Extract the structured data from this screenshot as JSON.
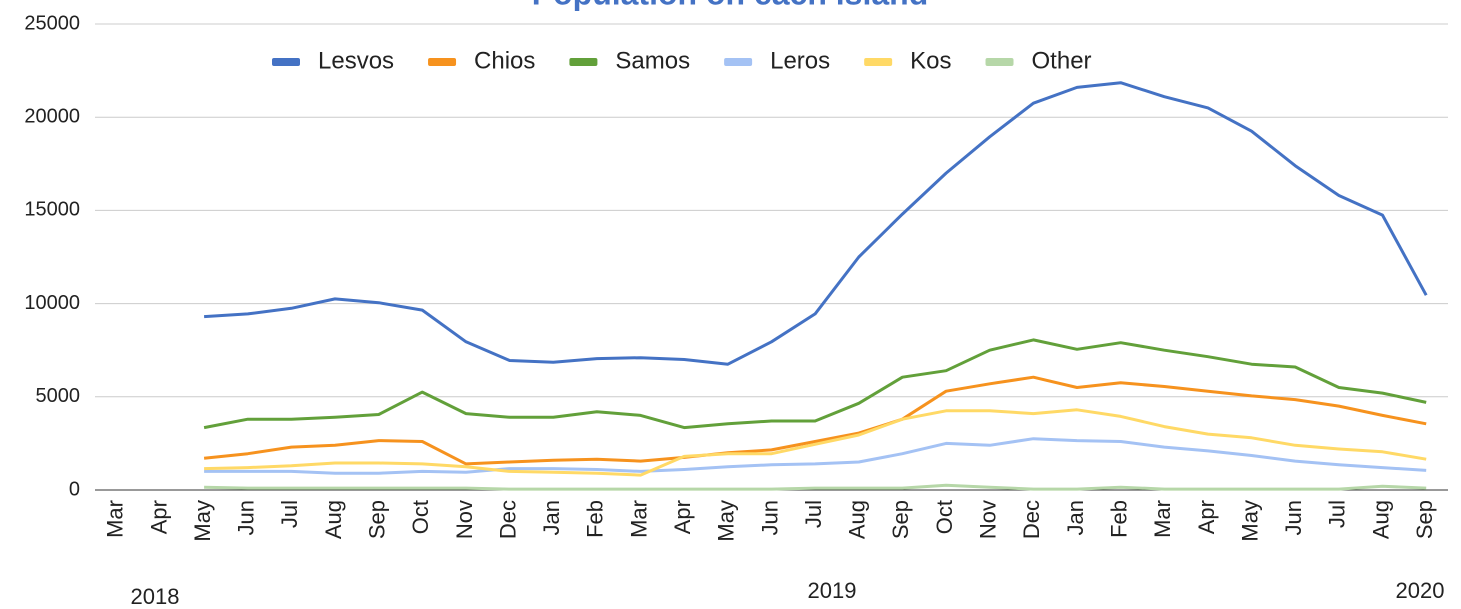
{
  "chart_data": {
    "type": "line",
    "title": "Population on each island",
    "categories": [
      "Mar",
      "Apr",
      "May",
      "Jun",
      "Jul",
      "Aug",
      "Sep",
      "Oct",
      "Nov",
      "Dec",
      "Jan",
      "Feb",
      "Mar",
      "Apr",
      "May",
      "Jun",
      "Jul",
      "Aug",
      "Sep",
      "Oct",
      "Nov",
      "Dec",
      "Jan",
      "Feb",
      "Mar",
      "Apr",
      "May",
      "Jun",
      "Jul",
      "Aug",
      "Sep"
    ],
    "year_labels": [
      "2018",
      "2019",
      "2020"
    ],
    "series": [
      {
        "name": "Lesvos",
        "color": "#4472c4",
        "values": [
          null,
          null,
          9300,
          9450,
          9750,
          10250,
          10050,
          9650,
          7950,
          6950,
          6850,
          7050,
          7100,
          7000,
          6750,
          7950,
          9450,
          12500,
          14800,
          17000,
          18950,
          20750,
          21600,
          21850,
          21100,
          20500,
          19250,
          17400,
          15800,
          14750,
          10450
        ]
      },
      {
        "name": "Chios",
        "color": "#f6921e",
        "values": [
          null,
          null,
          1700,
          1950,
          2300,
          2400,
          2650,
          2600,
          1400,
          1500,
          1600,
          1650,
          1550,
          1750,
          2000,
          2150,
          2600,
          3050,
          3800,
          5300,
          5700,
          6050,
          5500,
          5750,
          5550,
          5300,
          5050,
          4850,
          4500,
          4000,
          3550
        ]
      },
      {
        "name": "Samos",
        "color": "#62a03a",
        "values": [
          null,
          null,
          3350,
          3800,
          3800,
          3900,
          4050,
          5250,
          4100,
          3900,
          3900,
          4200,
          4000,
          3350,
          3550,
          3700,
          3700,
          4650,
          6050,
          6400,
          7500,
          8050,
          7550,
          7900,
          7500,
          7150,
          6750,
          6600,
          5500,
          5200,
          4700
        ]
      },
      {
        "name": "Leros",
        "color": "#a4c2f4",
        "values": [
          null,
          null,
          1000,
          1000,
          1000,
          900,
          900,
          1000,
          950,
          1150,
          1150,
          1100,
          1000,
          1100,
          1250,
          1350,
          1400,
          1500,
          1950,
          2500,
          2400,
          2750,
          2650,
          2600,
          2300,
          2100,
          1850,
          1550,
          1350,
          1200,
          1050
        ]
      },
      {
        "name": "Kos",
        "color": "#ffd966",
        "values": [
          null,
          null,
          1150,
          1200,
          1300,
          1450,
          1450,
          1400,
          1250,
          1000,
          950,
          900,
          800,
          1800,
          1950,
          1950,
          2450,
          2950,
          3800,
          4250,
          4250,
          4100,
          4300,
          3950,
          3400,
          3000,
          2800,
          2400,
          2200,
          2050,
          1650
        ]
      },
      {
        "name": "Other",
        "color": "#b6d7a8",
        "values": [
          null,
          null,
          150,
          100,
          100,
          100,
          100,
          100,
          100,
          50,
          50,
          50,
          50,
          50,
          50,
          50,
          100,
          100,
          100,
          250,
          150,
          50,
          50,
          150,
          50,
          50,
          50,
          50,
          50,
          200,
          100
        ]
      }
    ],
    "ylim": [
      0,
      25000
    ],
    "yticks": [
      0,
      5000,
      10000,
      15000,
      20000,
      25000
    ],
    "grid": true,
    "legend": "top"
  }
}
